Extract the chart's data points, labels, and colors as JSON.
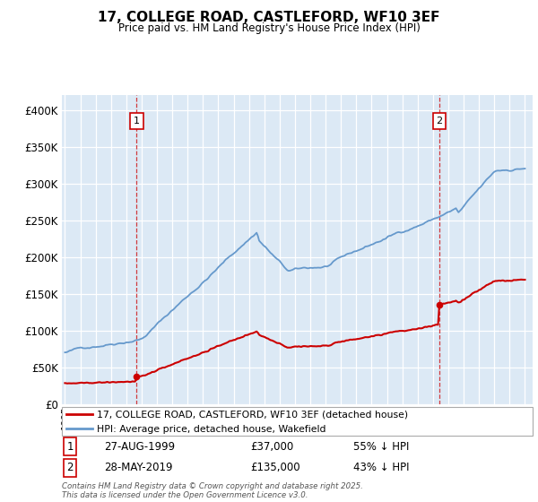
{
  "title": "17, COLLEGE ROAD, CASTLEFORD, WF10 3EF",
  "subtitle": "Price paid vs. HM Land Registry's House Price Index (HPI)",
  "legend_line1": "17, COLLEGE ROAD, CASTLEFORD, WF10 3EF (detached house)",
  "legend_line2": "HPI: Average price, detached house, Wakefield",
  "annotation1_date": "27-AUG-1999",
  "annotation1_price": "£37,000",
  "annotation1_hpi": "55% ↓ HPI",
  "annotation2_date": "28-MAY-2019",
  "annotation2_price": "£135,000",
  "annotation2_hpi": "43% ↓ HPI",
  "footer": "Contains HM Land Registry data © Crown copyright and database right 2025.\nThis data is licensed under the Open Government Licence v3.0.",
  "red_color": "#cc0000",
  "blue_color": "#6699cc",
  "plot_bg": "#dce9f5",
  "grid_color": "#ffffff",
  "ylim_max": 420000,
  "yticks": [
    0,
    50000,
    100000,
    150000,
    200000,
    250000,
    300000,
    350000,
    400000
  ],
  "sale1_year": 1999.648,
  "sale1_price": 37000,
  "sale2_year": 2019.41,
  "sale2_price": 135000
}
